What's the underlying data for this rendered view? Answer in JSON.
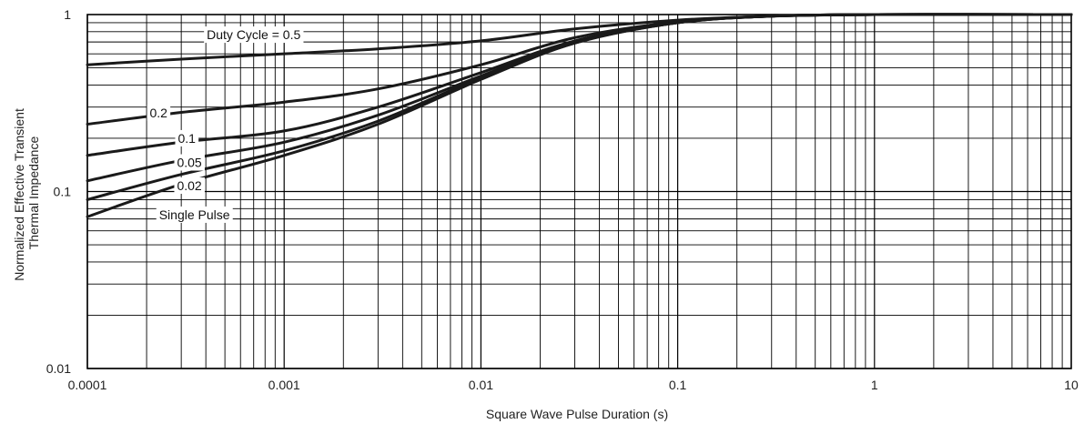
{
  "chart_data": {
    "type": "line",
    "xlabel": "Square Wave Pulse Duration (s)",
    "ylabel_lines": [
      "Normalized Effective Transient",
      "Thermal Impedance"
    ],
    "xscale": "log",
    "yscale": "log",
    "xlim": [
      0.0001,
      10
    ],
    "ylim": [
      0.01,
      1
    ],
    "grid": true,
    "x_ticks": [
      {
        "value": 0.0001,
        "label": "0.0001"
      },
      {
        "value": 0.001,
        "label": "0.001"
      },
      {
        "value": 0.01,
        "label": "0.01"
      },
      {
        "value": 0.1,
        "label": "0.1"
      },
      {
        "value": 1,
        "label": "1"
      },
      {
        "value": 10,
        "label": "10"
      }
    ],
    "y_ticks": [
      {
        "value": 0.01,
        "label": "0.01"
      },
      {
        "value": 0.1,
        "label": "0.1"
      },
      {
        "value": 1,
        "label": "1"
      }
    ],
    "series": [
      {
        "name": "Duty Cycle = 0.5",
        "label_at": [
          0.0007,
          0.77
        ],
        "x": [
          0.0001,
          0.0003,
          0.001,
          0.003,
          0.01,
          0.03,
          0.1,
          0.3,
          1,
          10
        ],
        "y": [
          0.52,
          0.56,
          0.6,
          0.64,
          0.71,
          0.83,
          0.93,
          0.98,
          1.0,
          1.0
        ]
      },
      {
        "name": "0.2",
        "label_at": [
          0.00023,
          0.278
        ],
        "x": [
          0.0001,
          0.0003,
          0.001,
          0.003,
          0.01,
          0.03,
          0.1,
          0.3,
          1,
          10
        ],
        "y": [
          0.24,
          0.28,
          0.32,
          0.38,
          0.52,
          0.74,
          0.91,
          0.98,
          1.0,
          1.0
        ]
      },
      {
        "name": "0.1",
        "label_at": [
          0.00032,
          0.2
        ],
        "x": [
          0.0001,
          0.0003,
          0.001,
          0.003,
          0.01,
          0.03,
          0.1,
          0.3,
          1,
          10
        ],
        "y": [
          0.16,
          0.19,
          0.22,
          0.3,
          0.47,
          0.71,
          0.9,
          0.98,
          1.0,
          1.0
        ]
      },
      {
        "name": "0.05",
        "label_at": [
          0.00033,
          0.146
        ],
        "x": [
          0.0001,
          0.0003,
          0.001,
          0.003,
          0.01,
          0.03,
          0.1,
          0.3,
          1,
          10
        ],
        "y": [
          0.115,
          0.15,
          0.19,
          0.27,
          0.45,
          0.7,
          0.9,
          0.98,
          1.0,
          1.0
        ]
      },
      {
        "name": "0.02",
        "label_at": [
          0.00033,
          0.108
        ],
        "x": [
          0.0001,
          0.0003,
          0.001,
          0.003,
          0.01,
          0.03,
          0.1,
          0.3,
          1,
          10
        ],
        "y": [
          0.09,
          0.125,
          0.17,
          0.25,
          0.44,
          0.69,
          0.9,
          0.98,
          1.0,
          1.0
        ]
      },
      {
        "name": "Single Pulse",
        "label_at": [
          0.00035,
          0.074
        ],
        "x": [
          0.0001,
          0.0003,
          0.001,
          0.003,
          0.01,
          0.03,
          0.1,
          0.3,
          1,
          10
        ],
        "y": [
          0.072,
          0.11,
          0.16,
          0.24,
          0.43,
          0.69,
          0.9,
          0.98,
          1.0,
          1.0
        ]
      }
    ]
  }
}
